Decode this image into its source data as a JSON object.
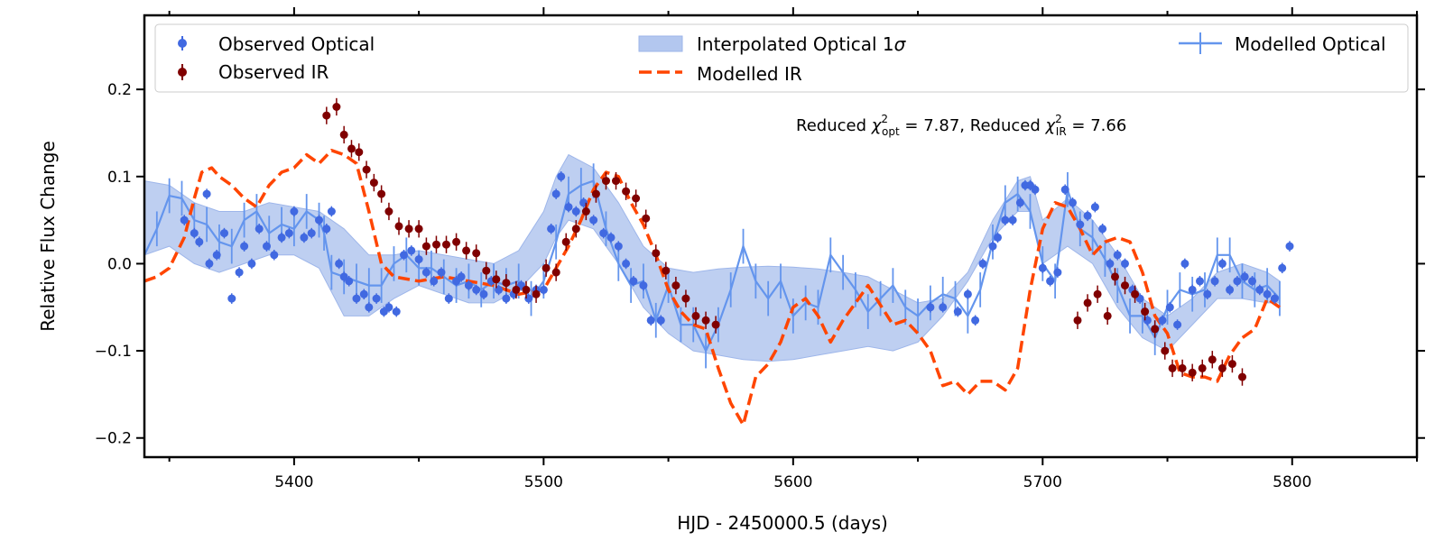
{
  "chart_data": {
    "type": "line",
    "xlabel": "HJD - 2450000.5 (days)",
    "ylabel": "Relative Flux Change",
    "xlim": [
      5340,
      5850
    ],
    "ylim": [
      -0.222,
      0.285
    ],
    "xticks": [
      5400,
      5500,
      5600,
      5700,
      5800
    ],
    "xtick_labels": [
      "5400",
      "5500",
      "5600",
      "5700",
      "5800"
    ],
    "yticks": [
      -0.2,
      -0.1,
      0.0,
      0.1,
      0.2
    ],
    "ytick_labels": [
      "−0.2",
      "−0.1",
      "0.0",
      "0.1",
      "0.2"
    ],
    "annotation": {
      "p1": "Reduced ",
      "chi": "χ",
      "sub1": "opt",
      "p2": " = 7.87, Reduced ",
      "sub2": "IR",
      "p3": " = 7.66",
      "sup": "2"
    },
    "legend": {
      "observed_optical": "Observed Optical",
      "observed_ir": "Observed IR",
      "interp_prefix": "Interpolated Optical 1",
      "interp_sigma": "σ",
      "modelled_ir": "Modelled IR",
      "modelled_optical": "Modelled Optical"
    },
    "colors": {
      "optical": "#4169e1",
      "ir": "#800000",
      "band": "#b3c7ef",
      "model_ir": "#ff4500",
      "model_opt": "#6495ed"
    },
    "band": {
      "x": [
        5340,
        5350,
        5360,
        5370,
        5380,
        5390,
        5400,
        5410,
        5420,
        5430,
        5440,
        5450,
        5460,
        5470,
        5480,
        5490,
        5500,
        5505,
        5510,
        5520,
        5530,
        5540,
        5550,
        5560,
        5570,
        5580,
        5590,
        5600,
        5610,
        5620,
        5630,
        5640,
        5650,
        5660,
        5670,
        5680,
        5690,
        5695,
        5700,
        5710,
        5720,
        5730,
        5740,
        5750,
        5760,
        5770,
        5780,
        5790,
        5795
      ],
      "upper": [
        0.095,
        0.09,
        0.07,
        0.06,
        0.06,
        0.07,
        0.065,
        0.06,
        0.04,
        0.01,
        0.01,
        0.015,
        0.01,
        0.005,
        0.0,
        0.015,
        0.06,
        0.1,
        0.125,
        0.11,
        0.07,
        0.02,
        -0.005,
        -0.01,
        -0.006,
        -0.004,
        -0.003,
        -0.004,
        -0.006,
        -0.01,
        -0.015,
        -0.03,
        -0.045,
        -0.04,
        -0.01,
        0.05,
        0.095,
        0.1,
        0.05,
        0.075,
        0.05,
        0.01,
        -0.04,
        -0.06,
        -0.04,
        -0.01,
        0.0,
        -0.01,
        -0.02
      ],
      "lower": [
        0.01,
        0.02,
        0.0,
        -0.01,
        0.0,
        0.01,
        0.01,
        -0.005,
        -0.06,
        -0.06,
        -0.04,
        -0.025,
        -0.035,
        -0.045,
        -0.045,
        -0.03,
        0.0,
        0.03,
        0.05,
        0.04,
        0.0,
        -0.05,
        -0.08,
        -0.1,
        -0.105,
        -0.11,
        -0.112,
        -0.11,
        -0.105,
        -0.1,
        -0.095,
        -0.1,
        -0.09,
        -0.06,
        -0.02,
        0.03,
        0.06,
        0.06,
        0.0,
        0.02,
        0.0,
        -0.05,
        -0.085,
        -0.1,
        -0.07,
        -0.04,
        -0.04,
        -0.045,
        -0.045
      ]
    },
    "modelled_ir": {
      "x": [
        5340,
        5345,
        5350,
        5356,
        5360,
        5363,
        5367,
        5370,
        5375,
        5380,
        5385,
        5390,
        5395,
        5400,
        5405,
        5410,
        5415,
        5420,
        5425,
        5430,
        5435,
        5440,
        5450,
        5460,
        5470,
        5480,
        5490,
        5500,
        5505,
        5510,
        5515,
        5520,
        5525,
        5530,
        5535,
        5540,
        5545,
        5550,
        5555,
        5560,
        5565,
        5570,
        5575,
        5580,
        5585,
        5590,
        5595,
        5600,
        5605,
        5610,
        5615,
        5620,
        5630,
        5640,
        5645,
        5650,
        5655,
        5660,
        5665,
        5670,
        5675,
        5680,
        5685,
        5690,
        5695,
        5700,
        5705,
        5710,
        5715,
        5720,
        5725,
        5730,
        5735,
        5740,
        5745,
        5750,
        5755,
        5760,
        5765,
        5770,
        5775,
        5780,
        5785,
        5790,
        5795
      ],
      "y": [
        -0.02,
        -0.015,
        -0.005,
        0.03,
        0.075,
        0.105,
        0.11,
        0.1,
        0.09,
        0.075,
        0.065,
        0.09,
        0.105,
        0.11,
        0.125,
        0.115,
        0.13,
        0.125,
        0.115,
        0.06,
        0.0,
        -0.015,
        -0.02,
        -0.015,
        -0.02,
        -0.025,
        -0.035,
        -0.03,
        -0.005,
        0.02,
        0.05,
        0.085,
        0.105,
        0.1,
        0.07,
        0.045,
        0.01,
        -0.03,
        -0.055,
        -0.07,
        -0.075,
        -0.12,
        -0.16,
        -0.185,
        -0.13,
        -0.115,
        -0.09,
        -0.05,
        -0.04,
        -0.06,
        -0.09,
        -0.065,
        -0.025,
        -0.07,
        -0.065,
        -0.08,
        -0.1,
        -0.14,
        -0.135,
        -0.15,
        -0.135,
        -0.135,
        -0.145,
        -0.12,
        -0.03,
        0.04,
        0.07,
        0.065,
        0.04,
        0.01,
        0.025,
        0.03,
        0.025,
        -0.01,
        -0.06,
        -0.08,
        -0.125,
        -0.13,
        -0.13,
        -0.135,
        -0.105,
        -0.085,
        -0.075,
        -0.04,
        -0.05
      ]
    },
    "modelled_optical": {
      "x": [
        5340,
        5345,
        5350,
        5355,
        5360,
        5365,
        5370,
        5375,
        5380,
        5385,
        5390,
        5395,
        5400,
        5405,
        5410,
        5412,
        5415,
        5420,
        5425,
        5430,
        5435,
        5440,
        5445,
        5450,
        5455,
        5460,
        5465,
        5470,
        5475,
        5480,
        5485,
        5490,
        5495,
        5500,
        5505,
        5510,
        5515,
        5520,
        5525,
        5530,
        5535,
        5540,
        5545,
        5550,
        5555,
        5560,
        5565,
        5570,
        5575,
        5580,
        5585,
        5590,
        5595,
        5600,
        5605,
        5610,
        5615,
        5620,
        5625,
        5630,
        5635,
        5640,
        5645,
        5650,
        5655,
        5660,
        5665,
        5670,
        5675,
        5680,
        5685,
        5690,
        5695,
        5700,
        5705,
        5710,
        5715,
        5720,
        5725,
        5730,
        5735,
        5740,
        5745,
        5750,
        5755,
        5760,
        5765,
        5770,
        5775,
        5780,
        5785,
        5790,
        5795
      ],
      "y": [
        0.01,
        0.04,
        0.078,
        0.075,
        0.05,
        0.045,
        0.025,
        0.02,
        0.05,
        0.06,
        0.035,
        0.045,
        0.04,
        0.06,
        0.05,
        0.035,
        -0.01,
        -0.015,
        -0.02,
        -0.025,
        -0.025,
        0.0,
        0.01,
        -0.005,
        -0.005,
        -0.015,
        -0.025,
        -0.02,
        -0.03,
        -0.02,
        -0.025,
        -0.02,
        -0.04,
        -0.02,
        0.025,
        0.08,
        0.09,
        0.095,
        0.04,
        0.0,
        -0.025,
        -0.02,
        -0.065,
        -0.025,
        -0.07,
        -0.07,
        -0.1,
        -0.07,
        -0.03,
        0.02,
        -0.02,
        -0.04,
        -0.02,
        -0.06,
        -0.045,
        -0.05,
        0.01,
        -0.01,
        -0.03,
        -0.055,
        -0.04,
        -0.025,
        -0.05,
        -0.06,
        -0.045,
        -0.035,
        -0.04,
        -0.06,
        -0.03,
        0.025,
        0.07,
        0.08,
        0.06,
        0.0,
        -0.02,
        0.085,
        0.04,
        0.03,
        0.005,
        -0.025,
        -0.06,
        -0.06,
        -0.085,
        -0.05,
        -0.03,
        -0.035,
        -0.03,
        0.01,
        0.01,
        -0.02,
        -0.03,
        -0.025,
        -0.04
      ],
      "err": 0.02
    },
    "observed_ir": {
      "x": [
        5413,
        5417,
        5420,
        5423,
        5426,
        5429,
        5432,
        5435,
        5438,
        5442,
        5446,
        5450,
        5453,
        5457,
        5461,
        5465,
        5469,
        5473,
        5477,
        5481,
        5485,
        5489,
        5493,
        5497,
        5501,
        5505,
        5509,
        5513,
        5517,
        5521,
        5525,
        5529,
        5533,
        5537,
        5541,
        5545,
        5549,
        5553,
        5557,
        5561,
        5565,
        5569,
        5714,
        5718,
        5722,
        5726,
        5729,
        5733,
        5737,
        5741,
        5745,
        5749,
        5752,
        5756,
        5760,
        5764,
        5768,
        5772,
        5776,
        5780
      ],
      "y": [
        0.17,
        0.18,
        0.148,
        0.132,
        0.128,
        0.108,
        0.093,
        0.08,
        0.06,
        0.043,
        0.04,
        0.04,
        0.02,
        0.022,
        0.022,
        0.025,
        0.015,
        0.012,
        -0.008,
        -0.018,
        -0.022,
        -0.03,
        -0.03,
        -0.035,
        -0.005,
        -0.01,
        0.025,
        0.04,
        0.06,
        0.08,
        0.095,
        0.095,
        0.083,
        0.075,
        0.052,
        0.012,
        -0.008,
        -0.025,
        -0.04,
        -0.06,
        -0.065,
        -0.07,
        -0.065,
        -0.045,
        -0.035,
        -0.06,
        -0.015,
        -0.025,
        -0.035,
        -0.055,
        -0.075,
        -0.1,
        -0.12,
        -0.12,
        -0.125,
        -0.12,
        -0.11,
        -0.12,
        -0.115,
        -0.13
      ],
      "err": 0.01
    },
    "observed_optical": {
      "x": [
        5356,
        5360,
        5362,
        5365,
        5366,
        5369,
        5372,
        5375,
        5378,
        5380,
        5383,
        5386,
        5389,
        5392,
        5395,
        5398,
        5400,
        5404,
        5407,
        5410,
        5413,
        5415,
        5418,
        5420,
        5422,
        5425,
        5428,
        5430,
        5433,
        5436,
        5438,
        5441,
        5444,
        5447,
        5450,
        5453,
        5456,
        5459,
        5462,
        5465,
        5467,
        5470,
        5473,
        5476,
        5479,
        5482,
        5485,
        5488,
        5491,
        5494,
        5497,
        5500,
        5503,
        5505,
        5507,
        5510,
        5513,
        5516,
        5520,
        5524,
        5527,
        5530,
        5533,
        5536,
        5540,
        5543,
        5547,
        5655,
        5660,
        5666,
        5670,
        5673,
        5676,
        5680,
        5682,
        5685,
        5688,
        5691,
        5693,
        5695,
        5697,
        5700,
        5703,
        5706,
        5709,
        5712,
        5715,
        5718,
        5721,
        5724,
        5727,
        5730,
        5733,
        5736,
        5739,
        5742,
        5745,
        5748,
        5751,
        5754,
        5757,
        5760,
        5763,
        5766,
        5769,
        5772,
        5775,
        5778,
        5781,
        5784,
        5787,
        5790,
        5793,
        5796,
        5799
      ],
      "y": [
        0.05,
        0.035,
        0.025,
        0.08,
        0.0,
        0.01,
        0.035,
        -0.04,
        -0.01,
        0.02,
        0.0,
        0.04,
        0.02,
        0.01,
        0.03,
        0.035,
        0.06,
        0.03,
        0.035,
        0.05,
        0.04,
        0.06,
        0.0,
        -0.015,
        -0.02,
        -0.04,
        -0.035,
        -0.05,
        -0.04,
        -0.055,
        -0.05,
        -0.055,
        0.01,
        0.015,
        0.005,
        -0.01,
        -0.02,
        -0.01,
        -0.04,
        -0.02,
        -0.015,
        -0.025,
        -0.03,
        -0.035,
        -0.02,
        -0.03,
        -0.04,
        -0.035,
        -0.025,
        -0.04,
        -0.03,
        -0.03,
        0.04,
        0.08,
        0.1,
        0.065,
        0.06,
        0.07,
        0.05,
        0.035,
        0.03,
        0.02,
        0.0,
        -0.02,
        -0.025,
        -0.065,
        -0.065,
        -0.05,
        -0.05,
        -0.055,
        -0.035,
        -0.065,
        0.0,
        0.02,
        0.03,
        0.05,
        0.05,
        0.07,
        0.09,
        0.09,
        0.085,
        -0.005,
        -0.02,
        -0.01,
        0.085,
        0.07,
        0.045,
        0.055,
        0.065,
        0.04,
        0.0,
        0.01,
        0.0,
        -0.03,
        -0.04,
        -0.065,
        -0.075,
        -0.065,
        -0.05,
        -0.07,
        0.0,
        -0.03,
        -0.02,
        -0.035,
        -0.02,
        0.0,
        -0.03,
        -0.02,
        -0.015,
        -0.02,
        -0.03,
        -0.035,
        -0.04,
        -0.005,
        0.02
      ],
      "err": 0.006
    }
  }
}
